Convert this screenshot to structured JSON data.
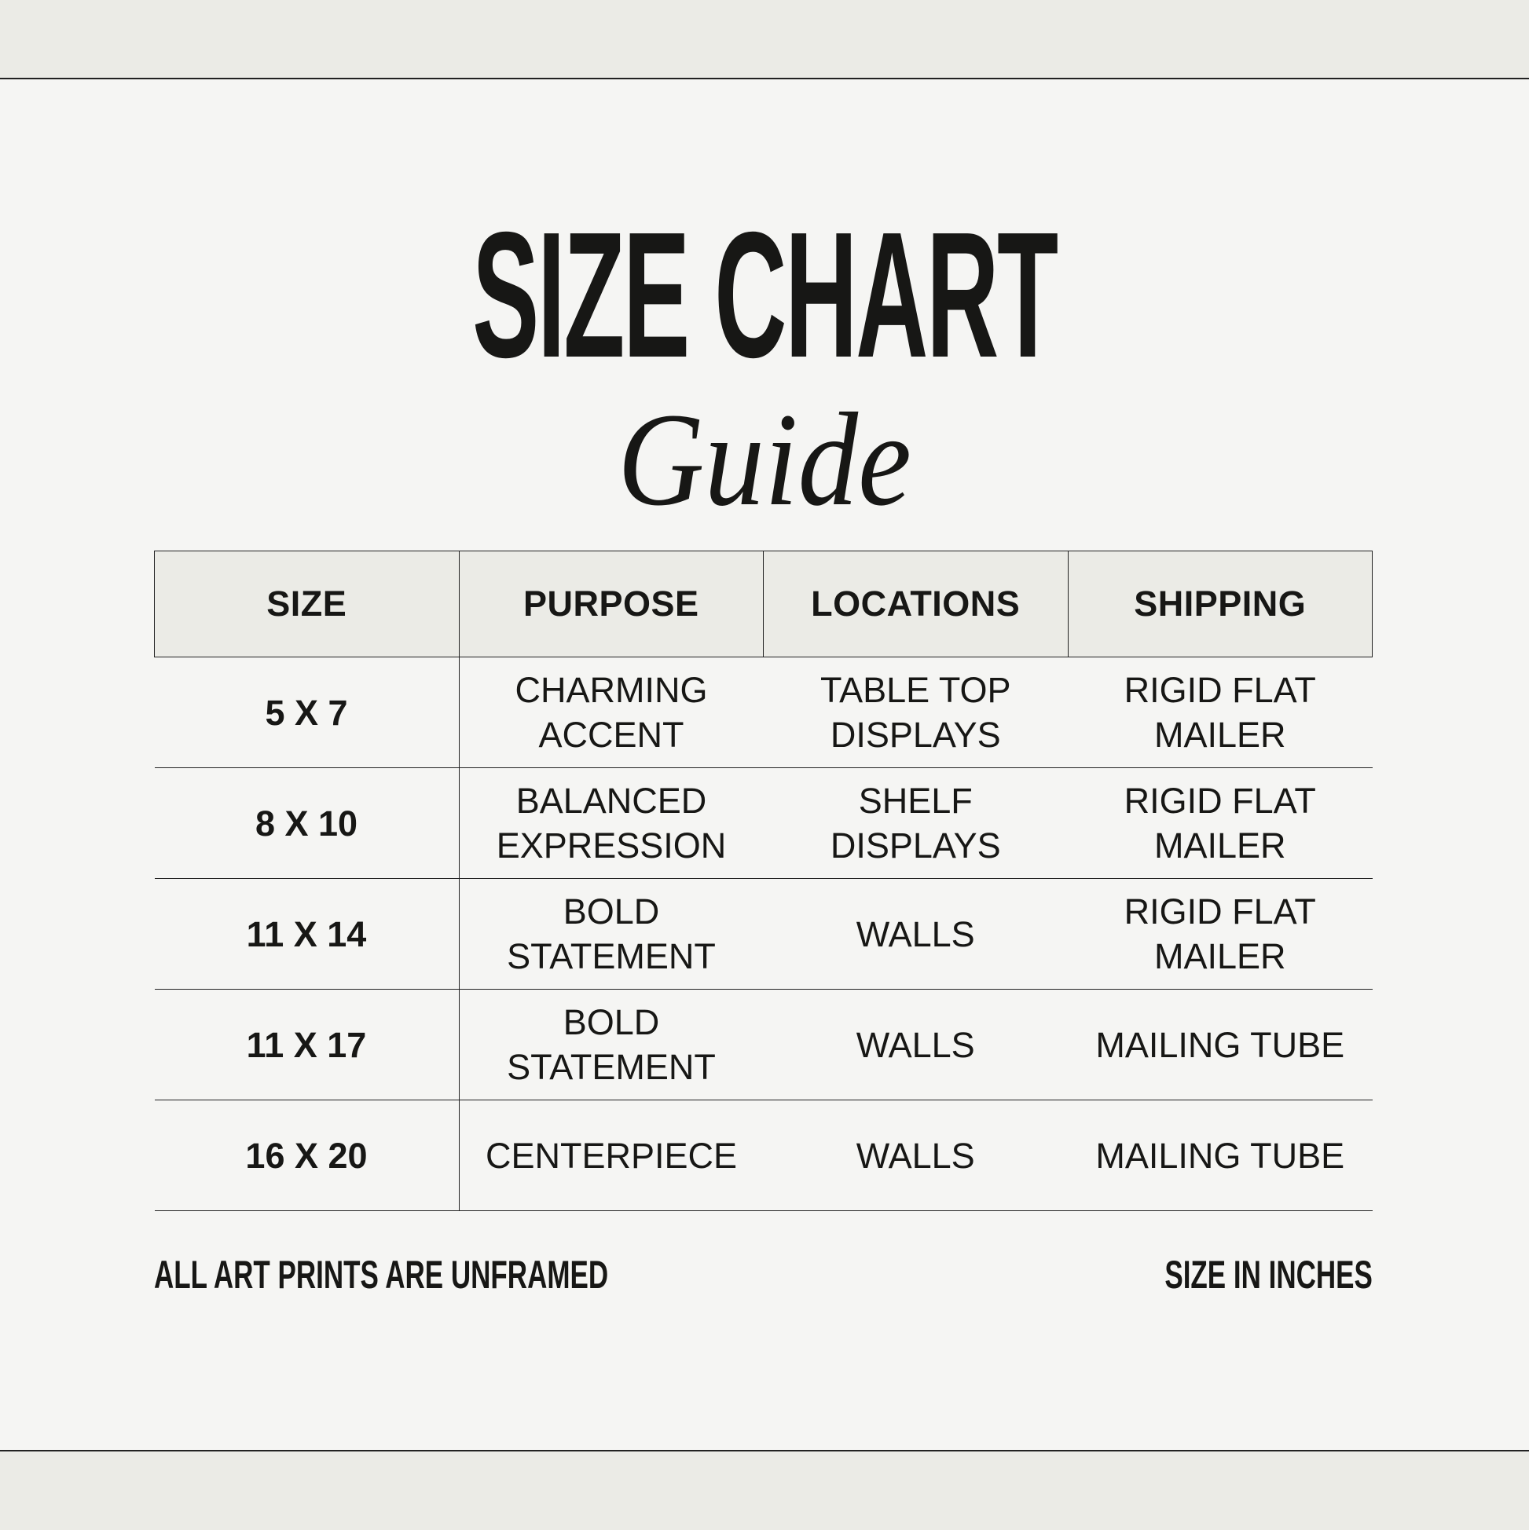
{
  "title": {
    "main": "SIZE CHART",
    "script": "Guide"
  },
  "table": {
    "headers": [
      "SIZE",
      "PURPOSE",
      "LOCATIONS",
      "SHIPPING"
    ],
    "rows": [
      {
        "size": "5 X 7",
        "purpose": [
          "CHARMING",
          "ACCENT"
        ],
        "locations": [
          "TABLE TOP",
          "DISPLAYS"
        ],
        "shipping": [
          "RIGID FLAT",
          "MAILER"
        ]
      },
      {
        "size": "8 X 10",
        "purpose": [
          "BALANCED",
          "EXPRESSION"
        ],
        "locations": [
          "SHELF",
          "DISPLAYS"
        ],
        "shipping": [
          "RIGID FLAT",
          "MAILER"
        ]
      },
      {
        "size": "11 X 14",
        "purpose": [
          "BOLD",
          "STATEMENT"
        ],
        "locations": [
          "WALLS"
        ],
        "shipping": [
          "RIGID FLAT",
          "MAILER"
        ]
      },
      {
        "size": "11 X 17",
        "purpose": [
          "BOLD",
          "STATEMENT"
        ],
        "locations": [
          "WALLS"
        ],
        "shipping": [
          "MAILING TUBE"
        ]
      },
      {
        "size": "16 X 20",
        "purpose": [
          "CENTERPIECE"
        ],
        "locations": [
          "WALLS"
        ],
        "shipping": [
          "MAILING TUBE"
        ]
      }
    ]
  },
  "footer": {
    "left": "ALL ART PRINTS ARE UNFRAMED",
    "right": "SIZE IN INCHES"
  },
  "colors": {
    "background": "#f5f5f3",
    "band": "#ebebe6",
    "text": "#171715"
  }
}
